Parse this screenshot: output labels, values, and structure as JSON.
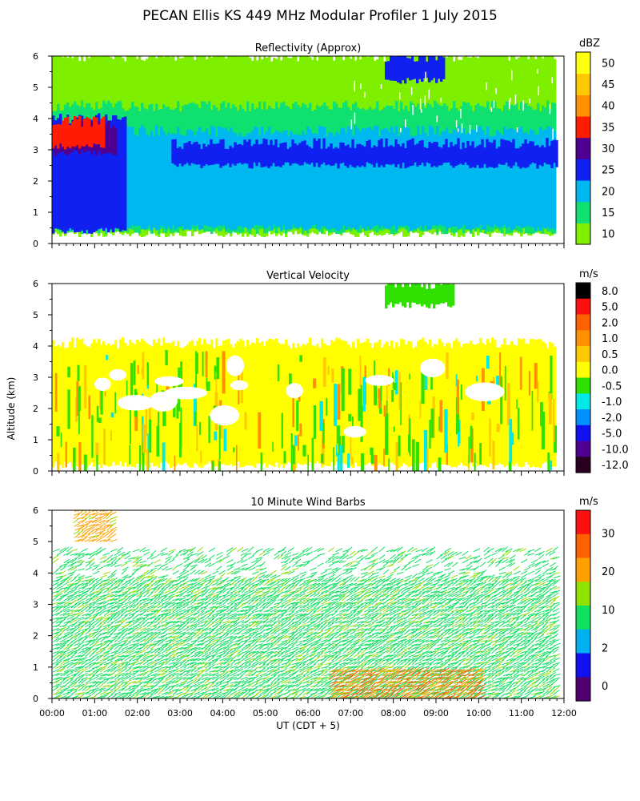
{
  "title": "PECAN Ellis KS 449 MHz Modular Profiler  1 July 2015",
  "ylabel": "Altitude (km)",
  "xlabel": "UT  (CDT + 5)",
  "chart_data": [
    {
      "type": "heatmap",
      "title": "Reflectivity (Approx)",
      "xlabel": "UT  (CDT + 5)",
      "ylabel": "Altitude (km)",
      "x_ticks": [
        "00:00",
        "01:00",
        "02:00",
        "03:00",
        "04:00",
        "05:00",
        "06:00",
        "07:00",
        "08:00",
        "09:00",
        "10:00",
        "11:00",
        "12:00"
      ],
      "y_ticks": [
        "0",
        "1",
        "2",
        "3",
        "4",
        "5",
        "6"
      ],
      "ylim": [
        0,
        6
      ],
      "xlim_hours": [
        0,
        12
      ],
      "colorbar": {
        "unit": "dBZ",
        "labels": [
          "10",
          "15",
          "20",
          "25",
          "30",
          "35",
          "40",
          "45",
          "50"
        ],
        "colors": [
          "#7fef00",
          "#10e070",
          "#00b8f0",
          "#1020f0",
          "#500090",
          "#ff1c00",
          "#ff9000",
          "#ffc800",
          "#ffff10"
        ]
      },
      "layers": [
        {
          "name": "10 dBZ base",
          "color": "#7fef00",
          "x_range_hours": [
            0.0,
            11.8
          ],
          "alt_range_km": [
            0.3,
            6.0
          ]
        },
        {
          "name": "15 dBZ layer",
          "color": "#10e070",
          "x_range_hours": [
            0.0,
            11.8
          ],
          "alt_range_km": [
            0.4,
            4.4
          ]
        },
        {
          "name": "20 dBZ layer",
          "color": "#00b8f0",
          "x_range_hours": [
            0.0,
            11.8
          ],
          "alt_range_km": [
            0.5,
            3.6
          ]
        },
        {
          "name": "25 dBZ band",
          "color": "#1020f0",
          "x_range_hours": [
            2.8,
            11.8
          ],
          "alt_range_km": [
            2.5,
            3.2
          ]
        },
        {
          "name": "25 dBZ early storm",
          "color": "#1020f0",
          "x_range_hours": [
            0.0,
            1.7
          ],
          "alt_range_km": [
            0.4,
            4.0
          ]
        },
        {
          "name": "30 dBZ core",
          "color": "#500090",
          "x_range_hours": [
            0.0,
            1.5
          ],
          "alt_range_km": [
            2.9,
            3.8
          ]
        },
        {
          "name": "35 dBZ core",
          "color": "#ff1c00",
          "x_range_hours": [
            0.0,
            1.2
          ],
          "alt_range_km": [
            3.1,
            3.9
          ]
        },
        {
          "name": "25 dBZ upper cloud",
          "color": "#1020f0",
          "x_range_hours": [
            7.8,
            9.2
          ],
          "alt_range_km": [
            5.2,
            6.0
          ]
        }
      ]
    },
    {
      "type": "heatmap",
      "title": "Vertical Velocity",
      "xlabel": "UT  (CDT + 5)",
      "ylabel": "Altitude (km)",
      "x_ticks": [
        "00:00",
        "01:00",
        "02:00",
        "03:00",
        "04:00",
        "05:00",
        "06:00",
        "07:00",
        "08:00",
        "09:00",
        "10:00",
        "11:00",
        "12:00"
      ],
      "y_ticks": [
        "0",
        "1",
        "2",
        "3",
        "4",
        "5",
        "6"
      ],
      "ylim": [
        0,
        6
      ],
      "xlim_hours": [
        0,
        12
      ],
      "colorbar": {
        "unit": "m/s",
        "labels": [
          "8.0",
          "5.0",
          "2.0",
          "1.0",
          "0.5",
          "0.0",
          "-0.5",
          "-1.0",
          "-2.0",
          "-5.0",
          "-10.0",
          "-12.0"
        ],
        "colors": [
          "#000000",
          "#ff1010",
          "#ff6000",
          "#ff9000",
          "#ffc800",
          "#ffff00",
          "#30e000",
          "#00e8e8",
          "#0090ff",
          "#1010f0",
          "#500090",
          "#2a0020"
        ]
      },
      "layers": [
        {
          "name": "mixed 0.0 / -0.5 m/s",
          "color": "#ffff00",
          "x_range_hours": [
            0.0,
            11.8
          ],
          "alt_range_km": [
            0.2,
            4.1
          ]
        },
        {
          "name": "upper echoes",
          "color": "#30e000",
          "x_range_hours": [
            7.8,
            9.4
          ],
          "alt_range_km": [
            5.3,
            6.0
          ]
        }
      ]
    },
    {
      "type": "scatter",
      "title": "10 Minute Wind Barbs",
      "xlabel": "UT  (CDT + 5)",
      "ylabel": "Altitude (km)",
      "x_ticks": [
        "00:00",
        "01:00",
        "02:00",
        "03:00",
        "04:00",
        "05:00",
        "06:00",
        "07:00",
        "08:00",
        "09:00",
        "10:00",
        "11:00",
        "12:00"
      ],
      "y_ticks": [
        "0",
        "1",
        "2",
        "3",
        "4",
        "5",
        "6"
      ],
      "ylim": [
        0,
        6
      ],
      "xlim_hours": [
        0,
        12
      ],
      "colorbar": {
        "unit": "m/s",
        "labels": [
          "30",
          "20",
          "10",
          "2",
          "0"
        ],
        "colors": [
          "#ff1010",
          "#ff6000",
          "#ffa000",
          "#90e000",
          "#10e060",
          "#00b0f0",
          "#1010f0",
          "#500070"
        ]
      },
      "wind_speed_field": [
        {
          "x_range_hours": [
            0.0,
            11.8
          ],
          "alt_range_km": [
            0.0,
            4.7
          ],
          "speed_ms": 10
        },
        {
          "x_range_hours": [
            6.5,
            10.0
          ],
          "alt_range_km": [
            0.0,
            0.9
          ],
          "speed_ms": 25
        },
        {
          "x_range_hours": [
            0.5,
            1.4
          ],
          "alt_range_km": [
            5.0,
            6.2
          ],
          "speed_ms": 20
        }
      ]
    }
  ]
}
